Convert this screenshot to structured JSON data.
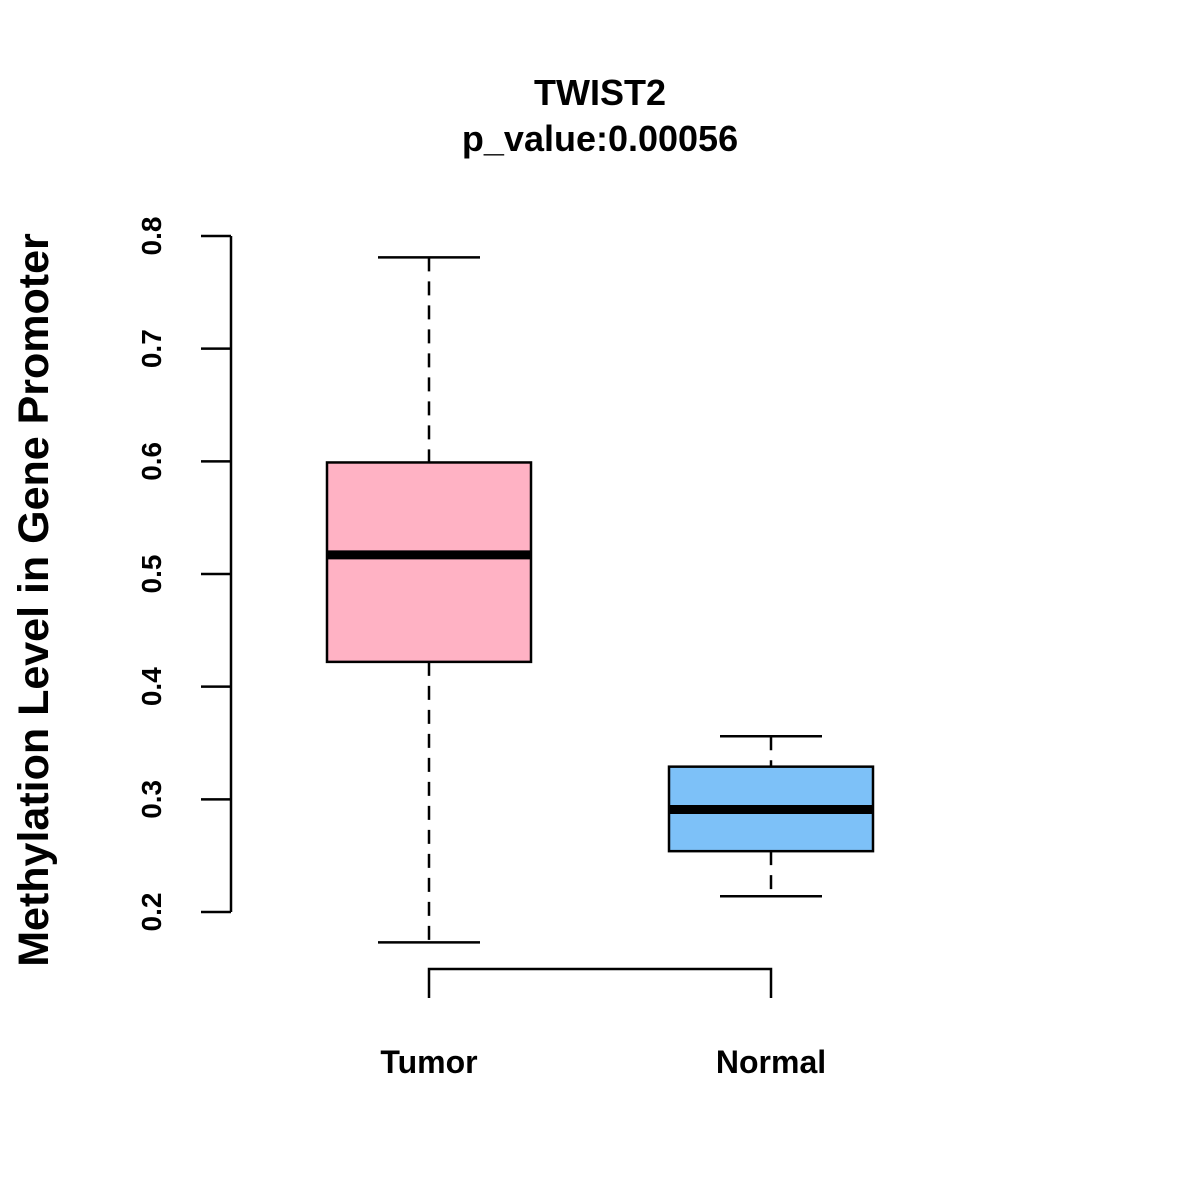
{
  "chart_data": {
    "type": "boxplot",
    "title": "TWIST2",
    "subtitle": "p_value:0.00056",
    "xlabel": "",
    "ylabel": "Methylation Level in Gene Promoter",
    "ylim": [
      0.2,
      0.8
    ],
    "yticks": [
      "0.2",
      "0.3",
      "0.4",
      "0.5",
      "0.6",
      "0.7",
      "0.8"
    ],
    "grid": false,
    "categories": [
      "Tumor",
      "Normal"
    ],
    "series": [
      {
        "name": "Tumor",
        "whisker_low": 0.173,
        "q1": 0.422,
        "median": 0.517,
        "q3": 0.599,
        "whisker_high": 0.781,
        "color": "#FFB2C4"
      },
      {
        "name": "Normal",
        "whisker_low": 0.214,
        "q1": 0.254,
        "median": 0.291,
        "q3": 0.329,
        "whisker_high": 0.356,
        "color": "#7DC1F8"
      }
    ]
  }
}
